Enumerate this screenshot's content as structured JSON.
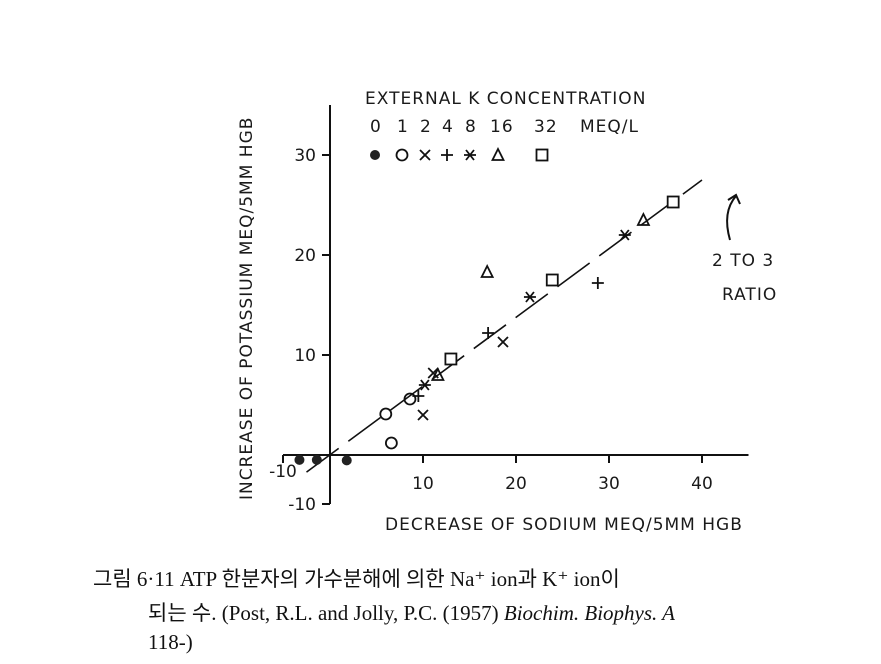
{
  "chart_data": {
    "type": "scatter",
    "title": "EXTERNAL K CONCENTRATION",
    "legend_units": "MEQ/L",
    "legend_placement": "top-left",
    "xlabel": "DECREASE OF SODIUM MEQ/5MM HGB",
    "ylabel": "INCREASE OF POTASSIUM MEQ/5MM HGB",
    "xlim": [
      -10,
      45
    ],
    "ylim": [
      -10,
      35
    ],
    "xticks": [
      -10,
      10,
      20,
      30,
      40
    ],
    "yticks": [
      -10,
      10,
      20,
      30
    ],
    "grid": false,
    "annotation": {
      "line1": "2 TO 3",
      "line2": "RATIO"
    },
    "fit_line": {
      "x": [
        -5,
        40
      ],
      "y": [
        -3.5,
        27.5
      ]
    },
    "series": [
      {
        "name": "0",
        "marker": "filled-circle",
        "points": [
          [
            -6.5,
            -1
          ],
          [
            -2.8,
            -1
          ],
          [
            1.8,
            -1.1
          ]
        ]
      },
      {
        "name": "1",
        "marker": "open-circle",
        "points": [
          [
            6.0,
            4.1
          ],
          [
            8.6,
            5.6
          ],
          [
            6.6,
            1.2
          ]
        ]
      },
      {
        "name": "2",
        "marker": "x",
        "points": [
          [
            10,
            4
          ],
          [
            11.1,
            8.2
          ],
          [
            18.6,
            11.3
          ]
        ]
      },
      {
        "name": "4",
        "marker": "plus",
        "points": [
          [
            9.5,
            5.9
          ],
          [
            17,
            12.2
          ],
          [
            28.8,
            17.2
          ]
        ]
      },
      {
        "name": "8",
        "marker": "asterisk",
        "points": [
          [
            10.2,
            7.0
          ],
          [
            21.5,
            15.8
          ],
          [
            31.7,
            22
          ]
        ]
      },
      {
        "name": "16",
        "marker": "triangle",
        "points": [
          [
            11.6,
            8.0
          ],
          [
            16.9,
            18.3
          ],
          [
            33.7,
            23.5
          ]
        ]
      },
      {
        "name": "32",
        "marker": "square",
        "points": [
          [
            13,
            9.6
          ],
          [
            23.9,
            17.5
          ],
          [
            36.9,
            25.3
          ]
        ]
      }
    ]
  },
  "caption": {
    "line1": "그림 6·11  ATP 한분자의 가수분해에 의한 Na⁺ ion과 K⁺ ion이",
    "line2_a": "되는  수.",
    "line2_b": "(Post, R.L. and Jolly, P.C. (1957)",
    "line2_c": "Biochim. Biophys. A",
    "line3": "118-)"
  }
}
